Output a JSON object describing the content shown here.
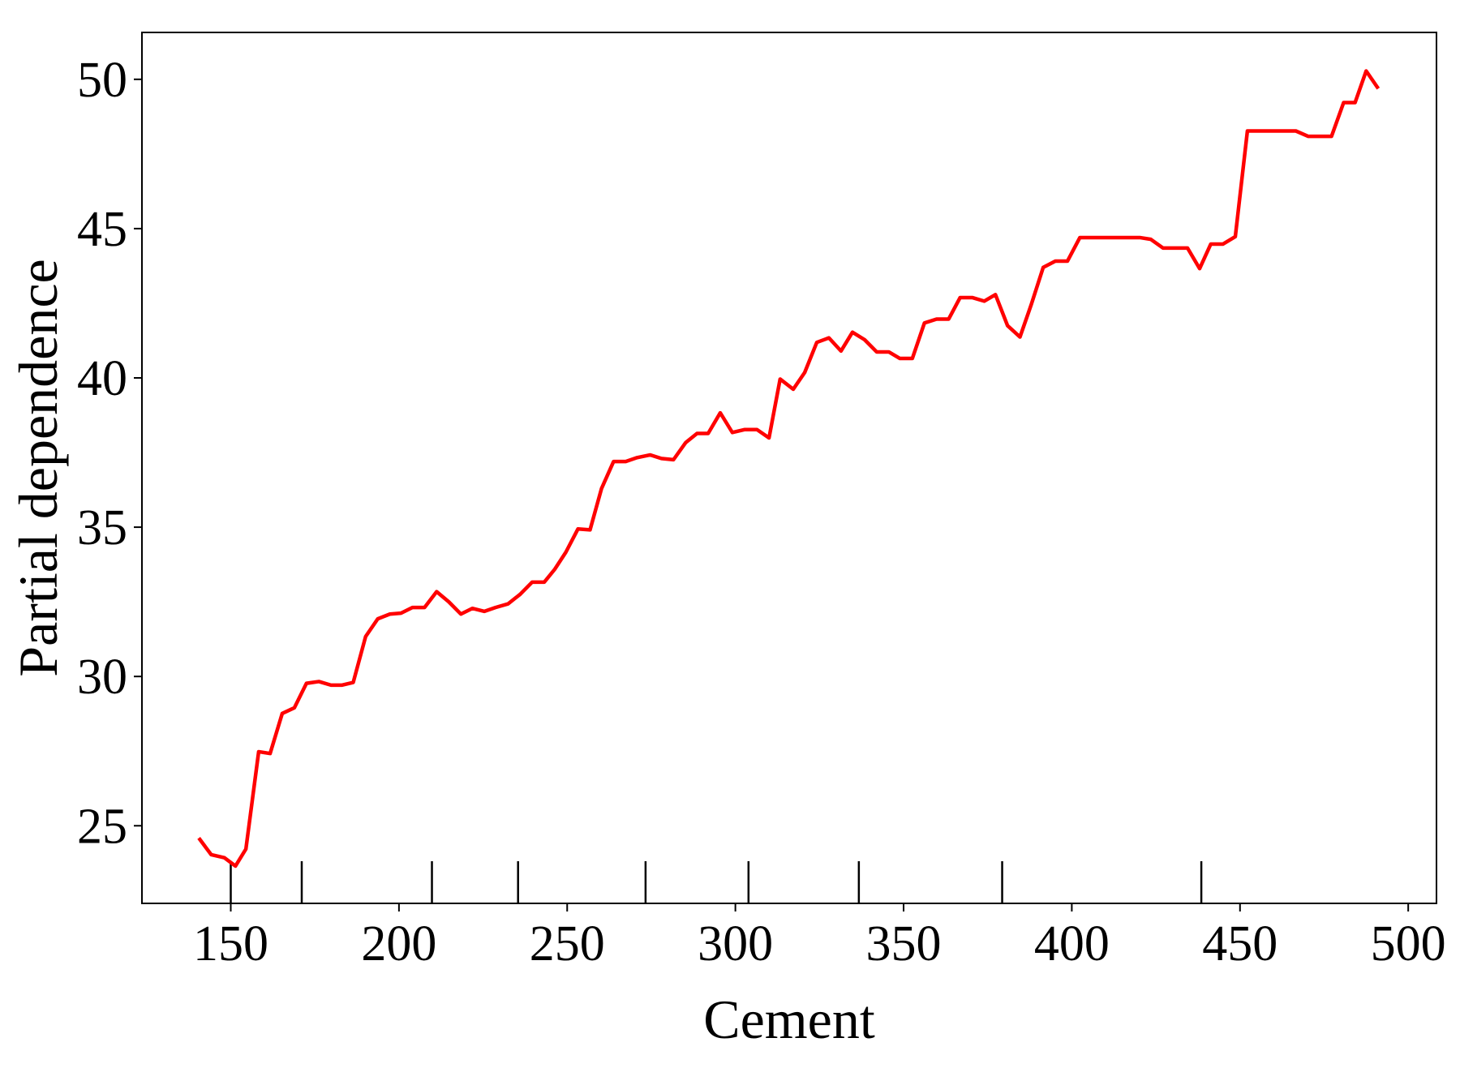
{
  "chart_data": {
    "type": "line",
    "xlabel": "Cement",
    "ylabel": "Partial dependence",
    "color": "#ff0000",
    "xlim": [
      123.6,
      508.4
    ],
    "ylim": [
      22.4,
      51.57
    ],
    "xticks": [
      150,
      200,
      250,
      300,
      350,
      400,
      450,
      500
    ],
    "yticks": [
      25,
      30,
      35,
      40,
      45,
      50
    ],
    "deciles": [
      150,
      171.1,
      209.8,
      235.4,
      273.3,
      303.9,
      336.7,
      379.3,
      438.5
    ],
    "x": [
      140.5,
      144.2,
      148.1,
      151.4,
      154.5,
      158.3,
      161.7,
      165.3,
      168.9,
      172.5,
      176.2,
      179.8,
      183.1,
      186.4,
      190.1,
      193.7,
      197.3,
      200.6,
      204.0,
      207.6,
      211.2,
      214.8,
      218.4,
      221.8,
      225.4,
      228.7,
      232.4,
      236.0,
      239.6,
      243.2,
      246.3,
      249.6,
      253.2,
      256.8,
      260.2,
      263.8,
      267.4,
      270.8,
      274.7,
      278.0,
      281.6,
      285.2,
      288.6,
      291.9,
      295.5,
      299.1,
      302.8,
      306.4,
      310.0,
      313.3,
      317.2,
      320.6,
      324.2,
      327.8,
      331.4,
      334.8,
      338.4,
      342.0,
      345.6,
      348.9,
      352.6,
      356.2,
      359.8,
      363.4,
      366.8,
      370.4,
      374.0,
      377.3,
      380.9,
      384.6,
      387.9,
      391.5,
      395.1,
      398.7,
      402.4,
      405.7,
      409.3,
      412.9,
      416.6,
      420.2,
      423.5,
      427.1,
      430.7,
      434.4,
      438.0,
      441.3,
      444.9,
      448.6,
      452.2,
      455.8,
      459.4,
      463.0,
      466.6,
      470.3,
      473.6,
      477.2,
      480.8,
      484.2,
      487.5,
      491.1
    ],
    "values": [
      24.59,
      24.03,
      23.93,
      23.65,
      24.22,
      27.48,
      27.42,
      28.76,
      28.95,
      29.77,
      29.83,
      29.71,
      29.71,
      29.8,
      31.34,
      31.93,
      32.09,
      32.12,
      32.31,
      32.31,
      32.84,
      32.5,
      32.09,
      32.28,
      32.18,
      32.31,
      32.43,
      32.75,
      33.16,
      33.16,
      33.59,
      34.16,
      34.94,
      34.91,
      36.29,
      37.2,
      37.2,
      37.33,
      37.42,
      37.3,
      37.26,
      37.83,
      38.14,
      38.14,
      38.83,
      38.17,
      38.27,
      38.27,
      37.99,
      39.96,
      39.62,
      40.18,
      41.19,
      41.34,
      40.9,
      41.53,
      41.28,
      40.87,
      40.87,
      40.65,
      40.65,
      41.84,
      41.97,
      41.97,
      42.69,
      42.69,
      42.57,
      42.79,
      41.75,
      41.37,
      42.44,
      43.7,
      43.91,
      43.91,
      44.7,
      44.7,
      44.7,
      44.7,
      44.7,
      44.7,
      44.64,
      44.35,
      44.35,
      44.35,
      43.66,
      44.48,
      44.48,
      44.73,
      48.27,
      48.27,
      48.27,
      48.27,
      48.27,
      48.09,
      48.09,
      48.09,
      49.22,
      49.22,
      50.28,
      49.69
    ]
  }
}
